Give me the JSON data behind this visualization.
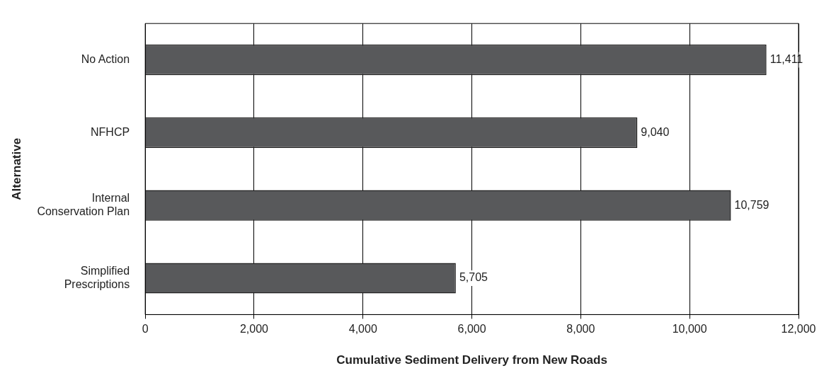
{
  "chart_data": {
    "type": "bar",
    "orientation": "horizontal",
    "xlabel": "Cumulative Sediment Delivery from New Roads",
    "ylabel": "Alternative",
    "categories": [
      "No Action",
      "NFHCP",
      "Internal Conservation Plan",
      "Simplified Prescriptions"
    ],
    "values": [
      11411,
      9040,
      10759,
      5705
    ],
    "value_labels": [
      "11,411",
      "9,040",
      "10,759",
      "5,705"
    ],
    "color": "#58595b",
    "xlim": [
      0,
      12000
    ],
    "xticks": [
      0,
      {
        "value": 2000,
        "label": "2,000"
      },
      {
        "value": 4000,
        "label": "4,000"
      },
      {
        "value": 6000,
        "label": "6,000"
      },
      {
        "value": 8000,
        "label": "8,000"
      },
      {
        "value": 10000,
        "label": "10,000"
      },
      {
        "value": 12000,
        "label": "12,000"
      }
    ],
    "grid": "x",
    "legend": false
  }
}
